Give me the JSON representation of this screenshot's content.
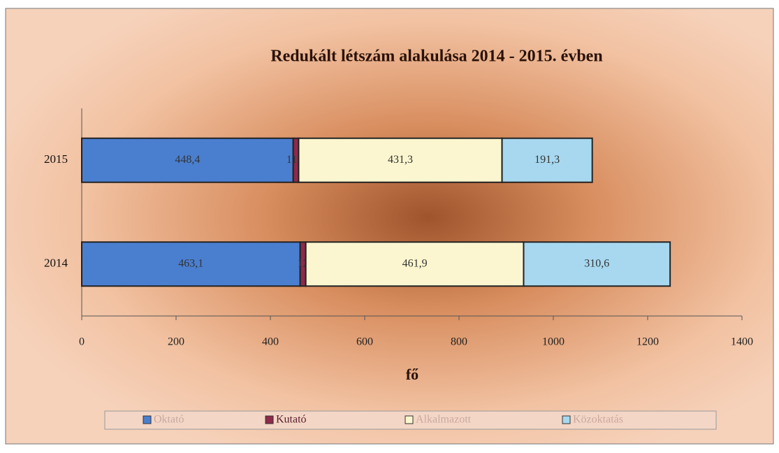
{
  "chart_data": {
    "type": "bar",
    "orientation": "horizontal",
    "stacked": true,
    "title": "Redukált létszám alakulása 2014 - 2015. évben",
    "x_label": "fő",
    "categories": [
      "2015",
      "2014"
    ],
    "series": [
      {
        "name": "Oktató",
        "color": "#4a7fd0",
        "values": [
          448.4,
          463.1
        ],
        "value_labels": [
          "448,4",
          "463,1"
        ]
      },
      {
        "name": "Kutató",
        "color": "#8e2a4a",
        "values": [
          11.5,
          12
        ],
        "value_labels": [
          "11,5",
          "12"
        ]
      },
      {
        "name": "Alkalmazott",
        "color": "#fbf6cf",
        "values": [
          431.3,
          461.9
        ],
        "value_labels": [
          "431,3",
          "461,9"
        ]
      },
      {
        "name": "Közoktatás",
        "color": "#a7d8ef",
        "values": [
          191.3,
          310.6
        ],
        "value_labels": [
          "191,3",
          "310,6"
        ]
      }
    ],
    "xlim": [
      0,
      1400
    ],
    "xticks": [
      0,
      200,
      400,
      600,
      800,
      1000,
      1200,
      1400
    ],
    "legend": "bottom"
  }
}
